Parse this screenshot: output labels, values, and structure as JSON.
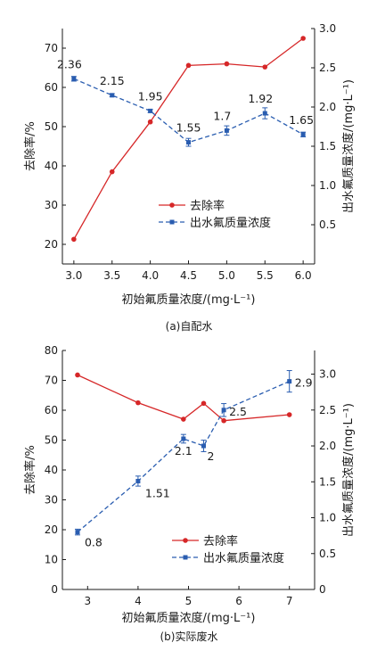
{
  "colors": {
    "removal": "#d62728",
    "effluent": "#2a5db0",
    "axis": "#1a1a1a"
  },
  "chart_data": [
    {
      "type": "line",
      "caption": "(a)自配水",
      "xlabel": "初始氟质量浓度/(mg·L⁻¹)",
      "ylabel": "去除率/%",
      "y2label": "出水氟质量浓度/(mg·L⁻¹)",
      "xlim": [
        2.85,
        6.15
      ],
      "ylim": [
        15,
        75
      ],
      "y2lim": [
        0,
        3.0
      ],
      "xticks": [
        "3.0",
        "3.5",
        "4.0",
        "4.5",
        "5.0",
        "5.5",
        "6.0"
      ],
      "xtick_values": [
        3.0,
        3.5,
        4.0,
        4.5,
        5.0,
        5.5,
        6.0
      ],
      "yticks": [
        "20",
        "30",
        "40",
        "50",
        "60",
        "70"
      ],
      "ytick_values": [
        20,
        30,
        40,
        50,
        60,
        70
      ],
      "y2ticks": [
        "0.5",
        "1.0",
        "1.5",
        "2.0",
        "2.5",
        "3.0"
      ],
      "y2tick_values": [
        0.5,
        1.0,
        1.5,
        2.0,
        2.5,
        3.0
      ],
      "legend_position": "center-right",
      "series": [
        {
          "name": "去除率",
          "axis": "left",
          "style": "solid",
          "marker": "circle",
          "x": [
            3.0,
            3.5,
            4.0,
            4.5,
            5.0,
            5.5,
            6.0
          ],
          "values": [
            21.3,
            38.5,
            51.2,
            65.6,
            66.0,
            65.2,
            72.5
          ]
        },
        {
          "name": "出水氟质量浓度",
          "axis": "right",
          "style": "dashed",
          "marker": "square",
          "x": [
            3.0,
            3.5,
            4.0,
            4.5,
            5.0,
            5.5,
            6.0
          ],
          "values": [
            2.36,
            2.15,
            1.95,
            1.55,
            1.7,
            1.92,
            1.65
          ],
          "errors": [
            0.03,
            0.02,
            0.02,
            0.05,
            0.06,
            0.07,
            0.03
          ],
          "labels": [
            "2.36",
            "2.15",
            "1.95",
            "1.55",
            "1.7",
            "1.92",
            "1.65"
          ]
        }
      ]
    },
    {
      "type": "line",
      "caption": "(b)实际废水",
      "xlabel": "初始氟质量浓度/(mg·L⁻¹)",
      "ylabel": "去除率/%",
      "y2label": "出水氟质量浓度/(mg·L⁻¹)",
      "xlim": [
        2.5,
        7.5
      ],
      "ylim": [
        0,
        80
      ],
      "y2lim": [
        0,
        3.33
      ],
      "xticks": [
        "3",
        "4",
        "5",
        "6",
        "7"
      ],
      "xtick_values": [
        3,
        4,
        5,
        6,
        7
      ],
      "yticks": [
        "0",
        "10",
        "20",
        "30",
        "40",
        "50",
        "60",
        "70",
        "80"
      ],
      "ytick_values": [
        0,
        10,
        20,
        30,
        40,
        50,
        60,
        70,
        80
      ],
      "y2ticks": [
        "0",
        "0.5",
        "1.0",
        "1.5",
        "2.0",
        "2.5",
        "3.0"
      ],
      "y2tick_values": [
        0,
        0.5,
        1.0,
        1.5,
        2.0,
        2.5,
        3.0
      ],
      "legend_position": "bottom-right",
      "series": [
        {
          "name": "去除率",
          "axis": "left",
          "style": "solid",
          "marker": "circle",
          "x": [
            2.8,
            4.0,
            4.9,
            5.3,
            5.7,
            7.0
          ],
          "values": [
            71.8,
            62.5,
            57.0,
            62.3,
            56.5,
            58.5
          ]
        },
        {
          "name": "出水氟质量浓度",
          "axis": "right",
          "style": "dashed",
          "marker": "square",
          "x": [
            2.8,
            4.0,
            4.9,
            5.3,
            5.7,
            7.0
          ],
          "values": [
            0.8,
            1.51,
            2.1,
            2.0,
            2.5,
            2.9
          ],
          "errors": [
            0.04,
            0.07,
            0.06,
            0.08,
            0.09,
            0.15
          ],
          "labels": [
            "0.8",
            "1.51",
            "2.1",
            "2",
            "2.5",
            "2.9"
          ]
        }
      ]
    }
  ]
}
